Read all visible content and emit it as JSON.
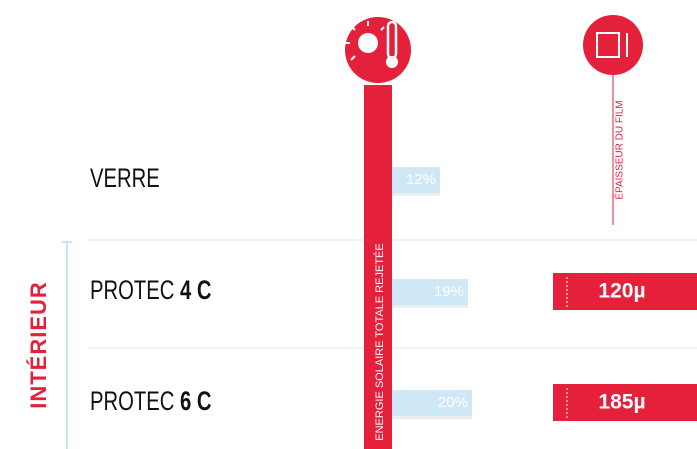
{
  "energy_label": "ENERGIE SOLAIRE TOTALE REJETÉE",
  "thickness_header": "ÉPAISSEUR DU FILM",
  "group_label": "INTÉRIEUR",
  "rows": [
    {
      "name": "VERRE",
      "energy": 12,
      "energy_label": "12%"
    },
    {
      "name": "PROTEC",
      "model": "4 C",
      "energy": 19,
      "energy_label": "19%",
      "thickness": "120µ"
    },
    {
      "name": "PROTEC",
      "model": "6 C",
      "energy": 20,
      "energy_label": "20%",
      "thickness": "185µ"
    }
  ]
}
